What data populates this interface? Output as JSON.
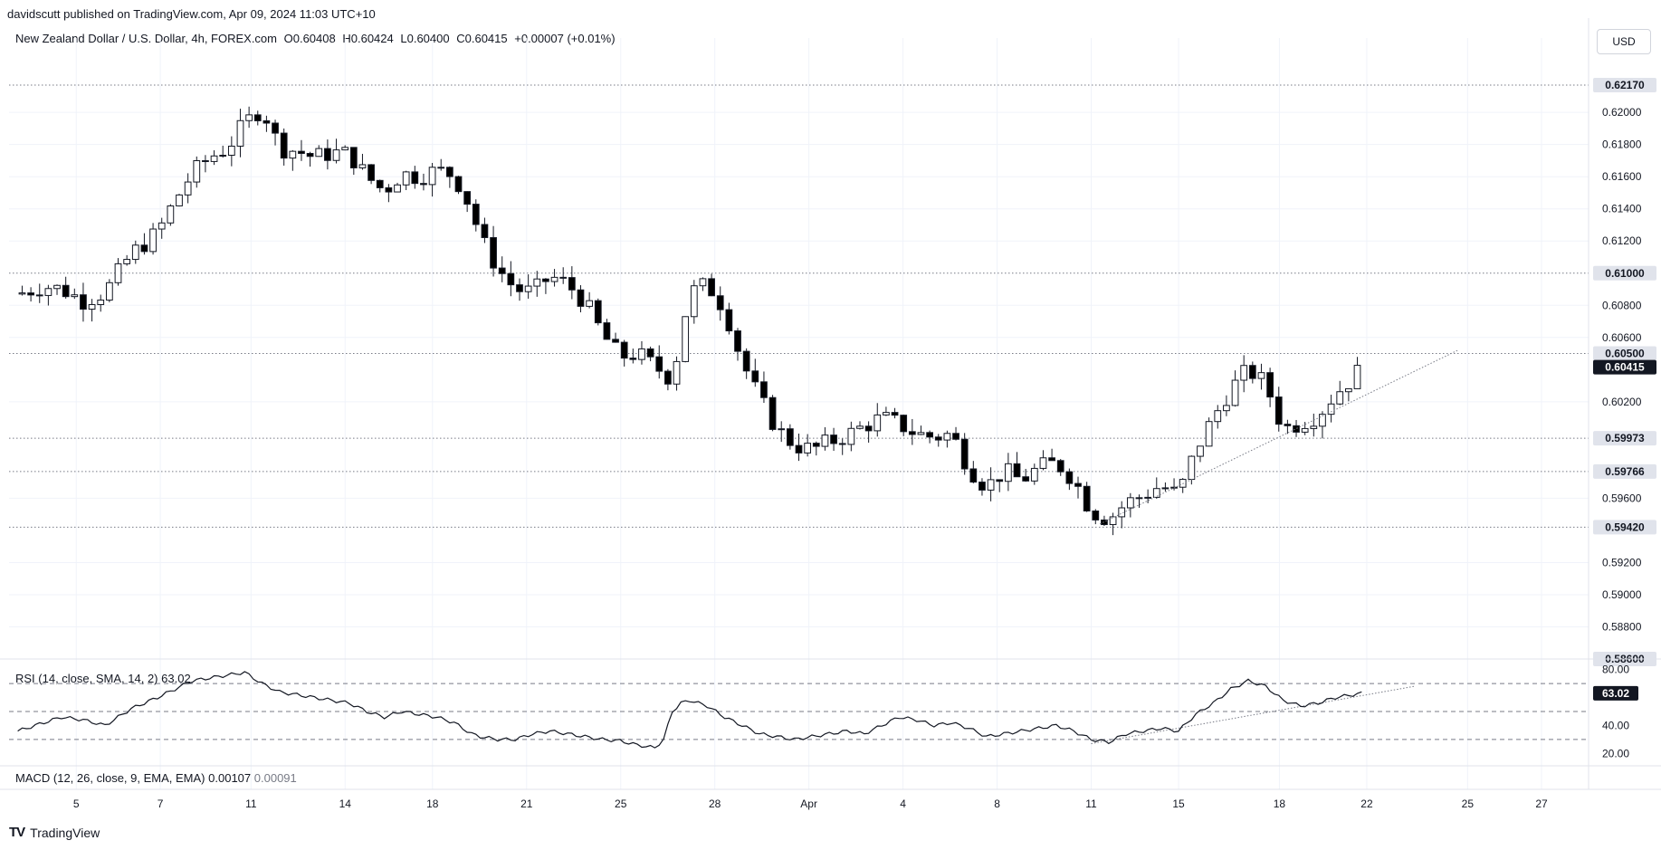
{
  "header": {
    "published": "davidscutt published on TradingView.com, Apr 09, 2024 11:03 UTC+10"
  },
  "legend": {
    "symbol": "New Zealand Dollar / U.S. Dollar, 4h, FOREX.com",
    "open": "O0.60408",
    "high": "H0.60424",
    "low": "L0.60400",
    "close": "C0.60415",
    "change": "+0.00007 (+0.01%)"
  },
  "currency_button": "USD",
  "rsi": {
    "label": "RSI (14, close, SMA, 14, 2)",
    "value": "63.02"
  },
  "macd": {
    "label": "MACD (12, 26, close, 9, EMA, EMA)",
    "value1": "0.00107",
    "value2": "0.00091"
  },
  "footer": {
    "brand": "TradingView",
    "logo_text": "TV"
  },
  "colors": {
    "up": "#ffffff",
    "down": "#000000",
    "wick": "#131722",
    "grid": "#f0f3fa",
    "level": "#787b86",
    "tag_dark": "#131722"
  },
  "chart_data": {
    "type": "candlestick",
    "price_ticks": [
      "0.62000",
      "0.61800",
      "0.61600",
      "0.61400",
      "0.61200",
      "0.60800",
      "0.60600",
      "0.60200",
      "0.59600",
      "0.59200",
      "0.59000",
      "0.58800"
    ],
    "price_ylim": [
      0.586,
      0.6235
    ],
    "levels": [
      {
        "label": "0.62170",
        "value": 0.6217
      },
      {
        "label": "0.61000",
        "value": 0.61
      },
      {
        "label": "0.60500",
        "value": 0.605
      },
      {
        "label": "0.59973",
        "value": 0.59973
      },
      {
        "label": "0.59766",
        "value": 0.59766
      },
      {
        "label": "0.59420",
        "value": 0.5942
      },
      {
        "label": "0.58600",
        "value": 0.586
      }
    ],
    "current_price": {
      "label": "0.60415",
      "value": 0.60415
    },
    "x_tick_labels": [
      "5",
      "7",
      "11",
      "14",
      "18",
      "21",
      "25",
      "28",
      "Apr",
      "4",
      "8",
      "11",
      "15",
      "18",
      "22",
      "25",
      "27"
    ],
    "close_path": [
      [
        0,
        0.6087
      ],
      [
        6,
        0.6092
      ],
      [
        10,
        0.609
      ],
      [
        15,
        0.6083
      ],
      [
        20,
        0.6088
      ],
      [
        26,
        0.6112
      ],
      [
        32,
        0.6125
      ],
      [
        36,
        0.6145
      ],
      [
        40,
        0.6162
      ],
      [
        44,
        0.6172
      ],
      [
        48,
        0.6178
      ],
      [
        52,
        0.6193
      ],
      [
        56,
        0.6203
      ],
      [
        60,
        0.6178
      ],
      [
        64,
        0.6176
      ],
      [
        68,
        0.6172
      ],
      [
        72,
        0.6175
      ],
      [
        76,
        0.6174
      ],
      [
        80,
        0.616
      ],
      [
        84,
        0.6151
      ],
      [
        88,
        0.6162
      ],
      [
        92,
        0.616
      ],
      [
        96,
        0.6164
      ],
      [
        100,
        0.6161
      ],
      [
        104,
        0.614
      ],
      [
        106,
        0.6122
      ],
      [
        110,
        0.6103
      ],
      [
        114,
        0.609
      ],
      [
        118,
        0.6088
      ],
      [
        122,
        0.6098
      ],
      [
        126,
        0.6093
      ],
      [
        130,
        0.6082
      ],
      [
        134,
        0.6062
      ],
      [
        138,
        0.6048
      ],
      [
        142,
        0.605
      ],
      [
        146,
        0.6042
      ],
      [
        150,
        0.6034
      ],
      [
        152,
        0.6062
      ],
      [
        154,
        0.6088
      ],
      [
        158,
        0.6093
      ],
      [
        162,
        0.6078
      ],
      [
        166,
        0.6045
      ],
      [
        170,
        0.6022
      ],
      [
        174,
        0.6003
      ],
      [
        178,
        0.5993
      ],
      [
        182,
        0.599
      ],
      [
        186,
        0.5995
      ],
      [
        190,
        0.5999
      ],
      [
        194,
        0.6005
      ],
      [
        198,
        0.601
      ],
      [
        202,
        0.6006
      ],
      [
        206,
        0.6
      ],
      [
        210,
        0.5998
      ],
      [
        214,
        0.6
      ],
      [
        218,
        0.5979
      ],
      [
        222,
        0.5967
      ],
      [
        226,
        0.5977
      ],
      [
        230,
        0.5971
      ],
      [
        234,
        0.5979
      ],
      [
        238,
        0.5982
      ],
      [
        242,
        0.5972
      ],
      [
        246,
        0.5952
      ],
      [
        250,
        0.5947
      ],
      [
        254,
        0.5957
      ],
      [
        258,
        0.5962
      ],
      [
        262,
        0.5968
      ],
      [
        266,
        0.5962
      ],
      [
        270,
        0.599
      ],
      [
        274,
        0.601
      ],
      [
        278,
        0.6028
      ],
      [
        282,
        0.604
      ],
      [
        286,
        0.6031
      ],
      [
        290,
        0.6003
      ],
      [
        294,
        0.6007
      ],
      [
        298,
        0.6012
      ],
      [
        302,
        0.6025
      ],
      [
        306,
        0.6035
      ],
      [
        308,
        0.60415
      ]
    ],
    "rsi_ticks": [
      "80.00",
      "40.00",
      "20.00"
    ],
    "rsi_ylim": [
      15,
      85
    ],
    "rsi_bands": [
      70,
      50,
      30
    ],
    "rsi_path": [
      [
        0,
        36
      ],
      [
        6,
        42
      ],
      [
        10,
        46
      ],
      [
        15,
        44
      ],
      [
        20,
        40
      ],
      [
        26,
        52
      ],
      [
        32,
        60
      ],
      [
        36,
        66
      ],
      [
        40,
        72
      ],
      [
        44,
        74
      ],
      [
        48,
        76
      ],
      [
        52,
        78
      ],
      [
        56,
        70
      ],
      [
        60,
        64
      ],
      [
        64,
        62
      ],
      [
        68,
        60
      ],
      [
        72,
        58
      ],
      [
        76,
        56
      ],
      [
        80,
        50
      ],
      [
        84,
        46
      ],
      [
        88,
        50
      ],
      [
        92,
        48
      ],
      [
        96,
        46
      ],
      [
        100,
        42
      ],
      [
        104,
        34
      ],
      [
        106,
        32
      ],
      [
        110,
        30
      ],
      [
        114,
        30
      ],
      [
        118,
        34
      ],
      [
        122,
        36
      ],
      [
        126,
        34
      ],
      [
        130,
        32
      ],
      [
        134,
        30
      ],
      [
        138,
        29
      ],
      [
        142,
        26
      ],
      [
        146,
        24
      ],
      [
        148,
        30
      ],
      [
        150,
        50
      ],
      [
        152,
        56
      ],
      [
        154,
        58
      ],
      [
        158,
        54
      ],
      [
        162,
        46
      ],
      [
        166,
        40
      ],
      [
        170,
        34
      ],
      [
        174,
        32
      ],
      [
        178,
        30
      ],
      [
        182,
        32
      ],
      [
        186,
        34
      ],
      [
        190,
        36
      ],
      [
        194,
        34
      ],
      [
        198,
        40
      ],
      [
        202,
        46
      ],
      [
        206,
        44
      ],
      [
        210,
        40
      ],
      [
        214,
        42
      ],
      [
        218,
        38
      ],
      [
        222,
        32
      ],
      [
        226,
        34
      ],
      [
        230,
        36
      ],
      [
        234,
        38
      ],
      [
        238,
        40
      ],
      [
        242,
        36
      ],
      [
        246,
        30
      ],
      [
        250,
        28
      ],
      [
        254,
        34
      ],
      [
        258,
        36
      ],
      [
        262,
        38
      ],
      [
        266,
        36
      ],
      [
        270,
        48
      ],
      [
        274,
        56
      ],
      [
        278,
        66
      ],
      [
        282,
        72
      ],
      [
        286,
        68
      ],
      [
        290,
        58
      ],
      [
        294,
        54
      ],
      [
        298,
        56
      ],
      [
        302,
        60
      ],
      [
        306,
        62
      ],
      [
        308,
        63.02
      ]
    ],
    "trendlines": [
      {
        "pane": "price",
        "from": [
          248,
          0.5944
        ],
        "to": [
          330,
          0.6052
        ]
      },
      {
        "pane": "rsi",
        "from": [
          246,
          27
        ],
        "to": [
          320,
          68
        ]
      }
    ],
    "xlim": [
      -2,
      360
    ],
    "grid": true
  }
}
